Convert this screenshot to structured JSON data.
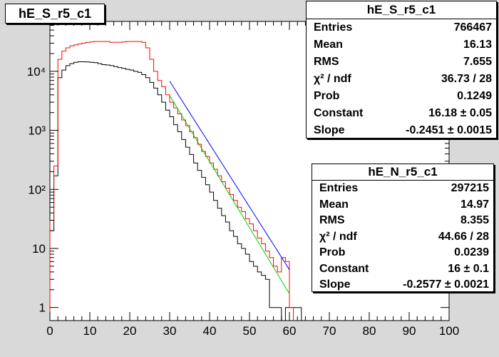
{
  "title": "hE_S_r5_c1",
  "stats_boxes": [
    {
      "name": "hE_S_r5_c1",
      "rows": [
        {
          "label": "Entries",
          "value": "766467"
        },
        {
          "label": "Mean",
          "value": "16.13"
        },
        {
          "label": "RMS",
          "value": "7.655"
        },
        {
          "label": "χ² / ndf",
          "value": "36.73 / 28"
        },
        {
          "label": "Prob",
          "value": "0.1249"
        },
        {
          "label": "Constant",
          "value": "16.18 ± 0.05"
        },
        {
          "label": "Slope",
          "value": "-0.2451 ± 0.0015"
        }
      ]
    },
    {
      "name": "hE_N_r5_c1",
      "rows": [
        {
          "label": "Entries",
          "value": "297215"
        },
        {
          "label": "Mean",
          "value": "14.97"
        },
        {
          "label": "RMS",
          "value": "8.355"
        },
        {
          "label": "χ² / ndf",
          "value": "44.66 / 28"
        },
        {
          "label": "Prob",
          "value": "0.0239"
        },
        {
          "label": "Constant",
          "value": "16 ± 0.1"
        },
        {
          "label": "Slope",
          "value": "-0.2577 ± 0.0021"
        }
      ]
    }
  ],
  "chart_data": {
    "type": "histogram",
    "xlim": [
      0,
      100
    ],
    "ylim": [
      0.6,
      70000
    ],
    "ylog": true,
    "grid": false,
    "x_ticks": [
      "0",
      "10",
      "20",
      "30",
      "40",
      "50",
      "60",
      "70",
      "80",
      "90",
      "100"
    ],
    "y_ticks": [
      "1",
      "10",
      "10²",
      "10³",
      "10⁴"
    ],
    "bin_width": 1,
    "colors": {
      "hE_S_r5_c1": "#ff0000",
      "hE_N_r5_c1": "#000000",
      "fit_S": "#0000ff",
      "fit_N": "#00cc00"
    },
    "series": [
      {
        "name": "hE_S_r5_c1",
        "bin_edges": [
          0,
          1,
          2,
          3,
          4,
          5,
          6,
          7,
          8,
          9,
          10,
          11,
          12,
          13,
          14,
          15,
          16,
          17,
          18,
          19,
          20,
          21,
          22,
          23,
          24,
          25,
          26,
          27,
          28,
          29,
          30,
          31,
          32,
          33,
          34,
          35,
          36,
          37,
          38,
          39,
          40,
          41,
          42,
          43,
          44,
          45,
          46,
          47,
          48,
          49,
          50,
          51,
          52,
          53,
          54,
          55,
          56,
          57,
          58,
          59,
          60,
          61
        ],
        "values": [
          30,
          250,
          16000,
          22000,
          25000,
          27000,
          28000,
          29000,
          30000,
          31000,
          31500,
          32000,
          32000,
          32000,
          32000,
          31000,
          31000,
          31000,
          31500,
          32000,
          32000,
          32000,
          32000,
          31000,
          25000,
          16000,
          10000,
          7000,
          5500,
          4000,
          3000,
          2400,
          1900,
          1500,
          1200,
          950,
          750,
          580,
          440,
          360,
          280,
          220,
          170,
          135,
          105,
          82,
          65,
          50,
          42,
          32,
          26,
          20,
          15,
          12,
          9,
          7,
          5,
          4,
          7,
          6,
          1
        ]
      },
      {
        "name": "hE_N_r5_c1",
        "bin_edges": [
          0,
          1,
          2,
          3,
          4,
          5,
          6,
          7,
          8,
          9,
          10,
          11,
          12,
          13,
          14,
          15,
          16,
          17,
          18,
          19,
          20,
          21,
          22,
          23,
          24,
          25,
          26,
          27,
          28,
          29,
          30,
          31,
          32,
          33,
          34,
          35,
          36,
          37,
          38,
          39,
          40,
          41,
          42,
          43,
          44,
          45,
          46,
          47,
          48,
          49,
          50,
          51,
          52,
          53,
          54,
          55,
          56,
          57,
          58,
          59,
          60,
          61,
          62,
          63
        ],
        "values": [
          20,
          170,
          7800,
          10500,
          12500,
          13500,
          14200,
          14500,
          14500,
          14400,
          14200,
          14000,
          13500,
          13000,
          12800,
          12500,
          12000,
          11600,
          11200,
          10800,
          10500,
          10000,
          9600,
          8800,
          7800,
          6500,
          5200,
          4000,
          3000,
          2200,
          1700,
          1250,
          950,
          700,
          520,
          390,
          280,
          210,
          160,
          120,
          90,
          65,
          48,
          36,
          28,
          20,
          16,
          12,
          10,
          8,
          6,
          5,
          4,
          3.5,
          3,
          1,
          1,
          1,
          0,
          1,
          1,
          1,
          1
        ]
      }
    ],
    "fits": [
      {
        "name": "fit_S",
        "type": "exponential",
        "constant": 16.18,
        "slope": -0.2451,
        "x_range": [
          30,
          60
        ]
      },
      {
        "name": "fit_N",
        "type": "exponential",
        "constant": 16.0,
        "slope": -0.2577,
        "x_range": [
          30,
          60
        ]
      }
    ]
  }
}
